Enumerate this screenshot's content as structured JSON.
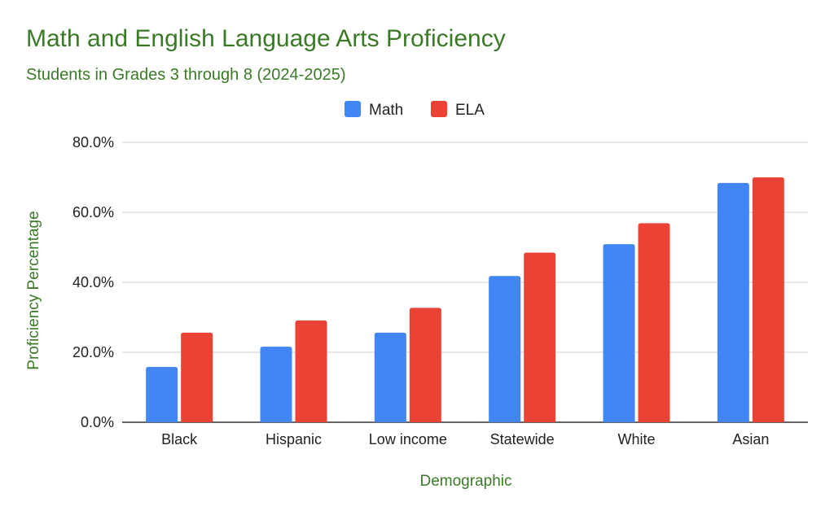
{
  "chart_data": {
    "type": "bar",
    "title": "Math and English Language Arts Proficiency",
    "subtitle": "Students in Grades 3 through 8 (2024-2025)",
    "xlabel": "Demographic",
    "ylabel": "Proficiency Percentage",
    "categories": [
      "Black",
      "Hispanic",
      "Low income",
      "Statewide",
      "White",
      "Asian"
    ],
    "series": [
      {
        "name": "Math",
        "color": "#4285f4",
        "values": [
          15.8,
          21.6,
          25.6,
          41.8,
          50.9,
          68.4
        ]
      },
      {
        "name": "ELA",
        "color": "#ea4335",
        "values": [
          25.6,
          29.1,
          32.7,
          48.5,
          56.9,
          70.0
        ]
      }
    ],
    "ylim": [
      0,
      80
    ],
    "yticks": [
      {
        "value": 0,
        "label": "0.0%"
      },
      {
        "value": 20,
        "label": "20.0%"
      },
      {
        "value": 40,
        "label": "40.0%"
      },
      {
        "value": 60,
        "label": "60.0%"
      },
      {
        "value": 80,
        "label": "80.0%"
      }
    ],
    "grid": true,
    "legend_position": "top"
  },
  "colors": {
    "text_accent": "#3a7a26",
    "gridline": "#cccccc",
    "baseline": "#333333"
  }
}
